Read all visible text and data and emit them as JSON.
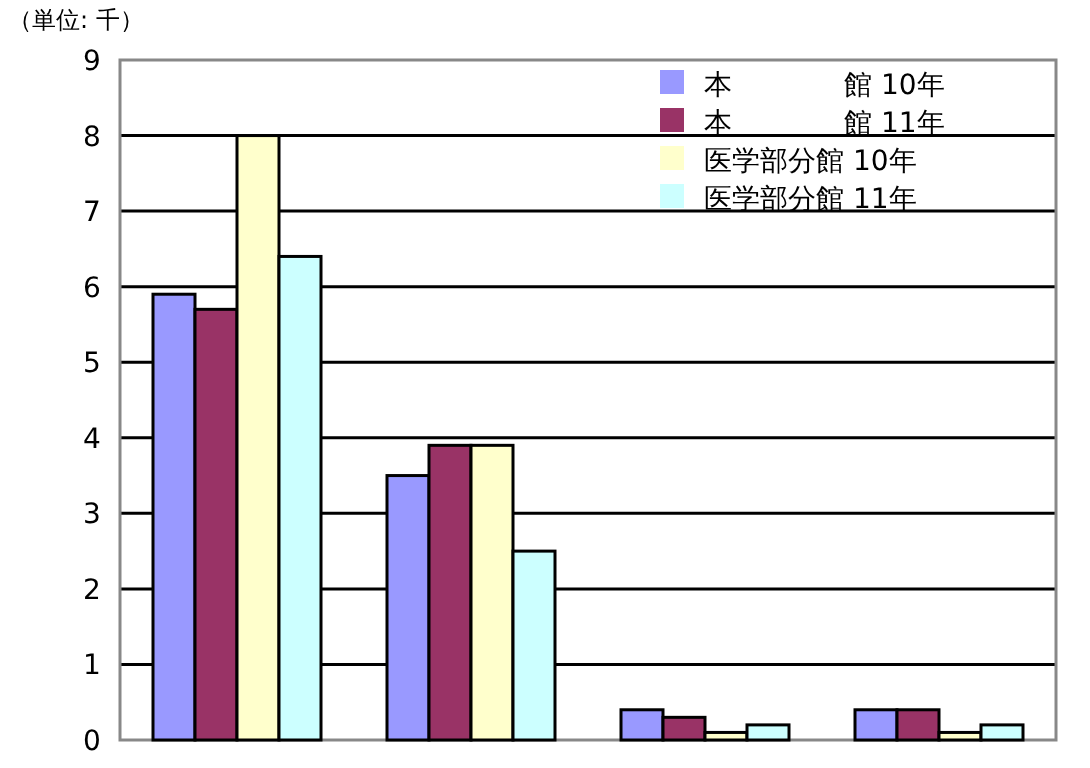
{
  "chart_data": {
    "type": "bar",
    "ylabel": "（単位: 千）",
    "categories": [
      null,
      null,
      null,
      null
    ],
    "series": [
      {
        "name": "本　　　　館 10年",
        "color": "#9999ff",
        "values": [
          5.9,
          3.5,
          0.4,
          0.4
        ]
      },
      {
        "name": "本　　　　館 11年",
        "color": "#993366",
        "values": [
          5.7,
          3.9,
          0.3,
          0.4
        ]
      },
      {
        "name": "医学部分館 10年",
        "color": "#ffffcc",
        "values": [
          8.0,
          3.9,
          0.1,
          0.1
        ]
      },
      {
        "name": "医学部分館 11年",
        "color": "#ccffff",
        "values": [
          6.4,
          2.5,
          0.2,
          0.2
        ]
      }
    ],
    "ylim": [
      0,
      9
    ],
    "yticks": [
      0,
      1,
      2,
      3,
      4,
      5,
      6,
      7,
      8,
      9
    ],
    "grid": "y",
    "legend": "top right"
  }
}
